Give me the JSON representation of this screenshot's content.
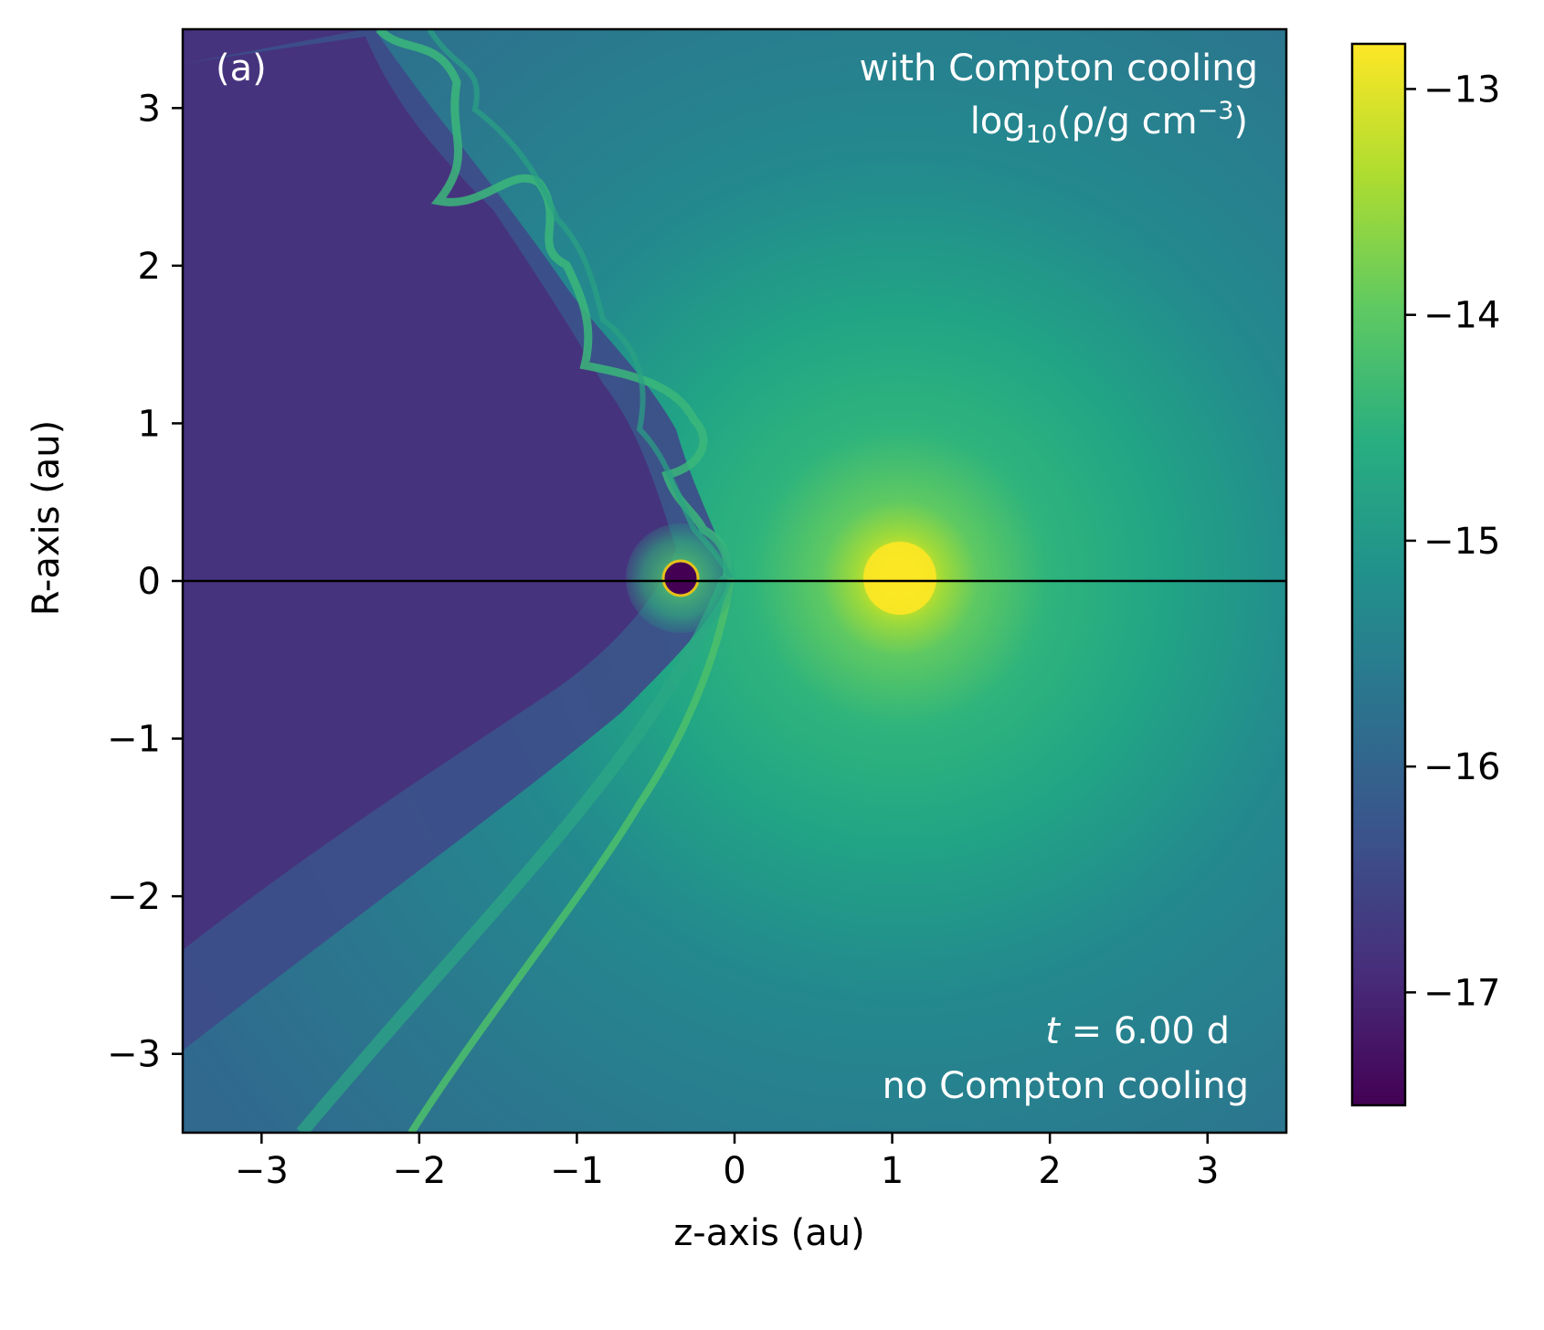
{
  "chart_data": {
    "type": "heatmap",
    "panel_label": "(a)",
    "xlabel": "z-axis (au)",
    "ylabel": "R-axis (au)",
    "xlim": [
      -3.5,
      3.5
    ],
    "ylim": [
      -3.5,
      3.5
    ],
    "x_ticks": [
      -3,
      -2,
      -1,
      0,
      1,
      2,
      3
    ],
    "x_tick_labels": [
      "−3",
      "−2",
      "−1",
      "0",
      "1",
      "2",
      "3"
    ],
    "y_ticks": [
      -3,
      -2,
      -1,
      0,
      1,
      2,
      3
    ],
    "y_tick_labels": [
      "−3",
      "−2",
      "−1",
      "0",
      "1",
      "2",
      "3"
    ],
    "colorbar": {
      "colormap": "viridis",
      "range": [
        -17.5,
        -12.8
      ],
      "ticks": [
        -17,
        -16,
        -15,
        -14,
        -13
      ],
      "tick_labels": [
        "−17",
        "−16",
        "−15",
        "−14",
        "−13"
      ]
    },
    "annotations": {
      "top_right_line1": "with Compton cooling",
      "quantity_prefix": "log",
      "quantity_subscript": "10",
      "quantity_body": "(ρ/g cm",
      "quantity_superscript": "−3",
      "quantity_suffix": ")",
      "time_var": "t",
      "time_value": " = 6.00 d",
      "bottom_right_line2": "no Compton cooling"
    },
    "divider_line_at_R": 0,
    "features": {
      "bright_star": {
        "z": 1.07,
        "R": 0.0,
        "log_density": -12.9
      },
      "compact_object": {
        "z": -0.34,
        "R": 0.0,
        "radius_au": 0.11
      }
    }
  }
}
